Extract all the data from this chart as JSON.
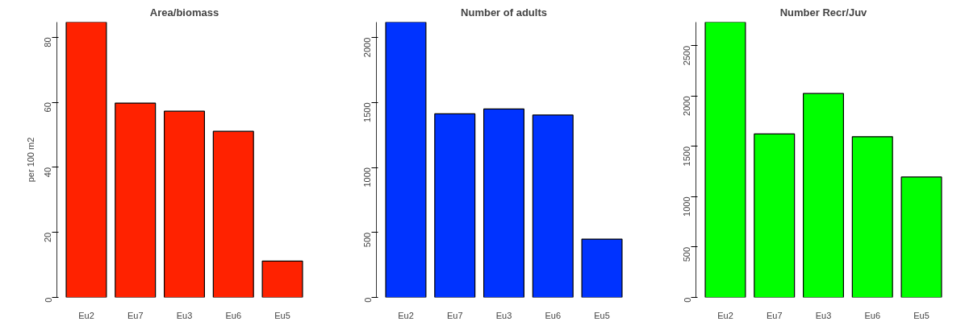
{
  "chart_data": [
    {
      "type": "bar",
      "title": "Area/biomass",
      "ylabel": "per 100 m2",
      "categories": [
        "Eu2",
        "Eu7",
        "Eu3",
        "Eu6",
        "Eu5"
      ],
      "values": [
        84.7,
        59.8,
        57.3,
        51.1,
        11.2
      ],
      "color": "#ff2200",
      "ylim": [
        0,
        84.7
      ],
      "yticks": [
        0,
        20,
        40,
        60,
        80
      ]
    },
    {
      "type": "bar",
      "title": "Number of adults",
      "categories": [
        "Eu2",
        "Eu7",
        "Eu3",
        "Eu6",
        "Eu5"
      ],
      "values": [
        2119,
        1413,
        1450,
        1404,
        449
      ],
      "color": "#0033ff",
      "ylim": [
        0,
        2119
      ],
      "yticks": [
        0,
        500,
        1000,
        1500,
        2000
      ]
    },
    {
      "type": "bar",
      "title": "Number Recr/Juv",
      "categories": [
        "Eu2",
        "Eu7",
        "Eu3",
        "Eu6",
        "Eu5"
      ],
      "values": [
        2735,
        1624,
        2026,
        1597,
        1196
      ],
      "color": "#00ff00",
      "ylim": [
        0,
        2735
      ],
      "yticks": [
        0,
        500,
        1000,
        1500,
        2000,
        2500
      ]
    }
  ]
}
